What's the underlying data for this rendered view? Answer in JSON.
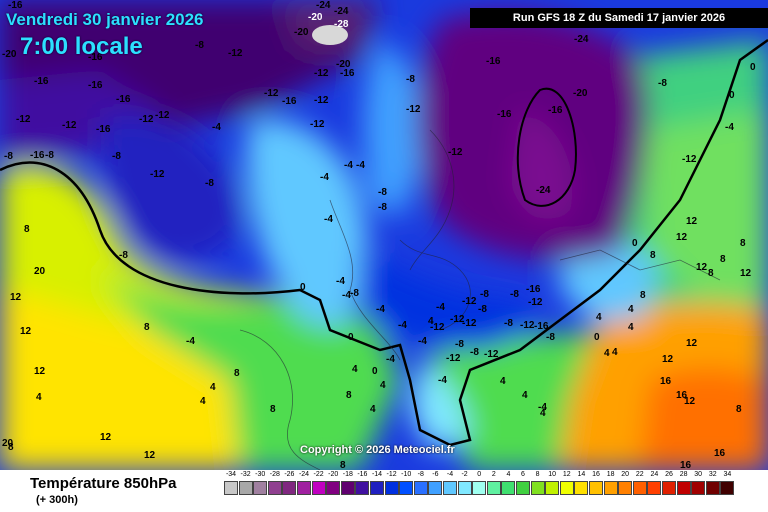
{
  "header": {
    "date": "Vendredi 30 janvier 2026",
    "time": "7:00 locale",
    "run": "Run GFS 18 Z du Samedi 17 janvier 2026"
  },
  "copyright": "Copyright © 2026 Meteociel.fr",
  "footer": {
    "title": "Température 850hPa",
    "subtitle": "(+ 300h)"
  },
  "legend": {
    "labels": [
      "-34",
      "-32",
      "-30",
      "-28",
      "-26",
      "-24",
      "-22",
      "-20",
      "-18",
      "-16",
      "-14",
      "-12",
      "-10",
      "-8",
      "-6",
      "-4",
      "-2",
      "0",
      "2",
      "4",
      "6",
      "8",
      "10",
      "12",
      "14",
      "16",
      "18",
      "20",
      "22",
      "24",
      "26",
      "28",
      "30",
      "32",
      "34"
    ],
    "colors": [
      "#c8c8c8",
      "#a8a8a8",
      "#a080a0",
      "#904090",
      "#802880",
      "#a020a0",
      "#c000c0",
      "#800080",
      "#600070",
      "#4010a0",
      "#2020c0",
      "#0030e0",
      "#0050ff",
      "#2a70ff",
      "#40a0ff",
      "#60c8ff",
      "#80e8ff",
      "#a0fff0",
      "#60f0a0",
      "#40e070",
      "#40d040",
      "#80e020",
      "#c0f000",
      "#f0ff00",
      "#ffe000",
      "#ffc000",
      "#ffa000",
      "#ff8000",
      "#ff6000",
      "#ff4000",
      "#e02000",
      "#c00000",
      "#a00000",
      "#700000",
      "#400000"
    ]
  },
  "map_values": [
    "-16",
    "-24",
    "-20",
    "-28",
    "-20",
    "-24",
    "-8",
    "-12",
    "-20",
    "-16",
    "-16",
    "-16",
    "-12",
    "-16",
    "-20",
    "-12",
    "-16",
    "-12",
    "-16",
    "-12",
    "-8",
    "-12",
    "-16",
    "-24",
    "0",
    "-8",
    "-20",
    "-16",
    "-16",
    "-12",
    "-12",
    "-16",
    "-4",
    "-12",
    "-12",
    "-8",
    "-8",
    "-16",
    "-8",
    "-12",
    "-8",
    "-12",
    "-4",
    "-4",
    "-4",
    "-8",
    "-8",
    "-4",
    "-24",
    "-8",
    "-12",
    "-4",
    "0",
    "0",
    "0",
    "-4",
    "-8",
    "-12",
    "-4",
    "-16",
    "-12",
    "12",
    "-8",
    "-8",
    "8",
    "-4",
    "0",
    "-4",
    "4",
    "-4",
    "-8",
    "-12",
    "-12",
    "-12",
    "-16",
    "-8",
    "-12",
    "-8",
    "0",
    "12",
    "-4",
    "-4",
    "-8",
    "-12",
    "-8",
    "-12",
    "4",
    "-4",
    "0",
    "4",
    "4",
    "12",
    "8",
    "4",
    "-4",
    "4",
    "8",
    "4",
    "4",
    "-4",
    "4",
    "4",
    "12",
    "12",
    "4",
    "4",
    "8",
    "4",
    "4",
    "8",
    "4",
    "12",
    "8",
    "12",
    "8",
    "8",
    "12",
    "8",
    "16",
    "16",
    "12",
    "16",
    "16",
    "20",
    "20",
    "8",
    "12",
    "8",
    "8",
    "12",
    "8",
    "12",
    "4",
    "12"
  ]
}
